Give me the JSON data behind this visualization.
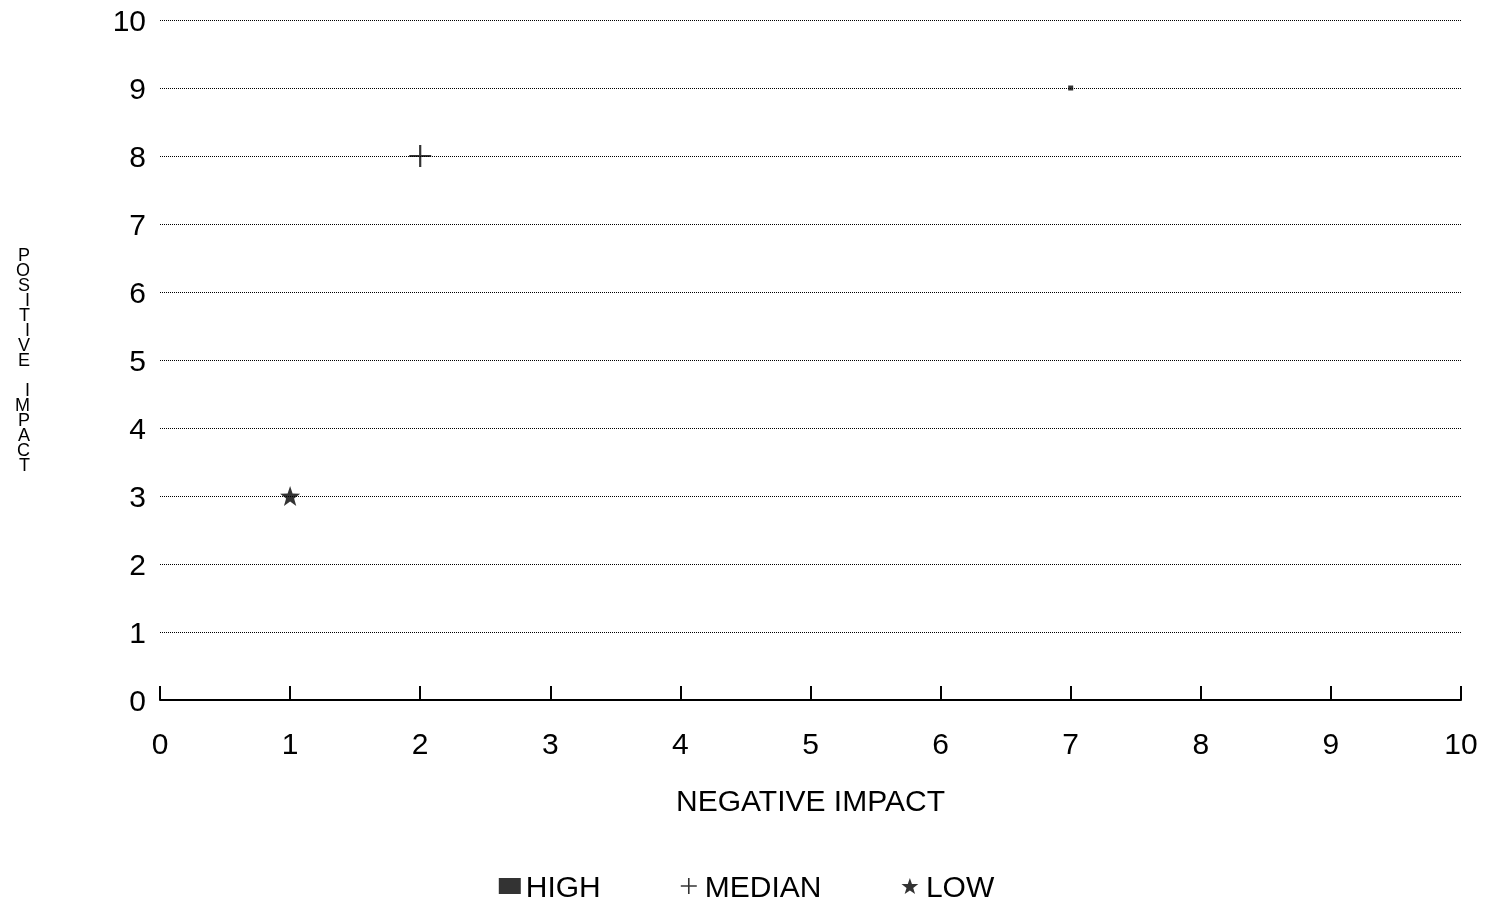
{
  "chart_data": {
    "type": "scatter",
    "xlabel": "NEGATIVE IMPACT",
    "ylabel": "POSITIVE IMPACT",
    "xlim": [
      0,
      10
    ],
    "xticks": [
      0,
      1,
      2,
      3,
      4,
      5,
      6,
      7,
      8,
      9,
      10
    ],
    "ylim": [
      0,
      10
    ],
    "yticks": [
      0,
      1,
      2,
      3,
      4,
      5,
      6,
      7,
      8,
      9,
      10
    ],
    "grid": "y",
    "legend": "bottom",
    "series": [
      {
        "name": "HIGH",
        "color": "#000000",
        "marker": "square",
        "x": [
          7
        ],
        "values": [
          9
        ]
      },
      {
        "name": "MEDIAN",
        "color": "#000000",
        "marker": "cross",
        "x": [
          2
        ],
        "values": [
          8
        ]
      },
      {
        "name": "LOW",
        "color": "#000000",
        "marker": "star",
        "x": [
          1
        ],
        "values": [
          3
        ]
      }
    ]
  }
}
